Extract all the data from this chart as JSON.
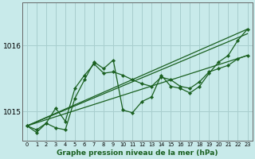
{
  "xlabel": "Graphe pression niveau de la mer (hPa)",
  "x_labels": [
    "0",
    "1",
    "2",
    "3",
    "4",
    "5",
    "6",
    "7",
    "8",
    "9",
    "10",
    "11",
    "12",
    "13",
    "14",
    "15",
    "16",
    "17",
    "18",
    "19",
    "20",
    "21",
    "22",
    "23"
  ],
  "ylim": [
    1014.55,
    1016.65
  ],
  "yticks": [
    1015,
    1016
  ],
  "background_color": "#c8eaea",
  "grid_color": "#a8cece",
  "line_color": "#1a6020",
  "marker_color": "#1a6020",
  "series_wavy1": {
    "x": [
      0,
      1,
      2,
      3,
      4,
      5,
      6,
      7,
      8,
      9,
      10,
      11,
      12,
      13,
      14,
      15,
      16,
      17,
      18,
      19,
      20,
      21,
      22,
      23
    ],
    "y": [
      1014.78,
      1014.72,
      1014.82,
      1015.05,
      1014.85,
      1015.35,
      1015.55,
      1015.72,
      1015.58,
      1015.6,
      1015.55,
      1015.48,
      1015.42,
      1015.38,
      1015.52,
      1015.48,
      1015.38,
      1015.35,
      1015.45,
      1015.6,
      1015.65,
      1015.7,
      1015.8,
      1015.85
    ]
  },
  "series_wavy2": {
    "x": [
      0,
      1,
      2,
      3,
      4,
      5,
      6,
      7,
      8,
      9,
      10,
      11,
      12,
      13,
      14,
      15,
      16,
      17,
      18,
      19,
      20,
      21,
      22,
      23
    ],
    "y": [
      1014.78,
      1014.68,
      1014.82,
      1014.75,
      1014.72,
      1015.2,
      1015.48,
      1015.75,
      1015.65,
      1015.78,
      1015.02,
      1014.98,
      1015.15,
      1015.22,
      1015.55,
      1015.38,
      1015.35,
      1015.28,
      1015.38,
      1015.58,
      1015.75,
      1015.85,
      1016.08,
      1016.25
    ]
  },
  "series_line1": {
    "x": [
      0,
      23
    ],
    "y": [
      1014.78,
      1016.25
    ]
  },
  "series_line2": {
    "x": [
      0,
      23
    ],
    "y": [
      1014.78,
      1016.18
    ]
  },
  "series_line3": {
    "x": [
      0,
      23
    ],
    "y": [
      1014.78,
      1015.85
    ]
  }
}
